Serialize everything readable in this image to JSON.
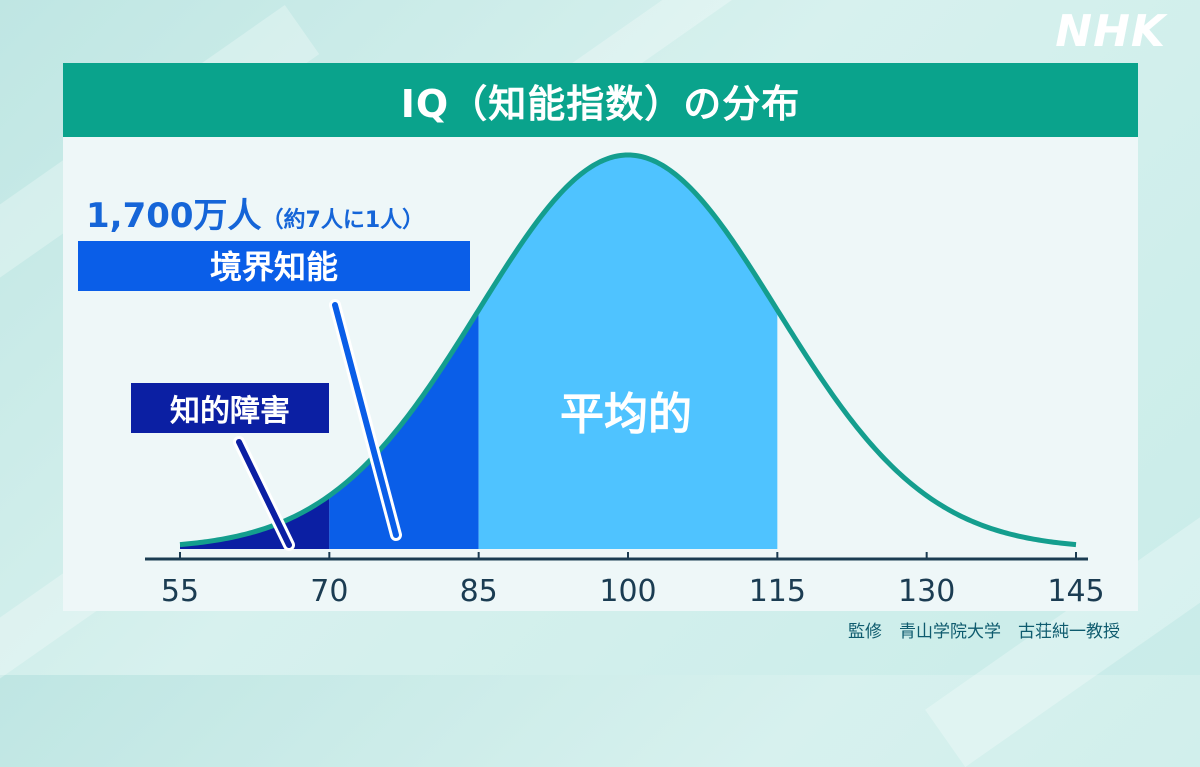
{
  "logo": "NHK",
  "title": "IQ（知能指数）の分布",
  "credit": "監修　青山学院大学　古荘純一教授",
  "chart_data": {
    "type": "area",
    "distribution": "normal",
    "mean": 100,
    "sd": 15,
    "xlim": [
      55,
      145
    ],
    "x_ticks": [
      "55",
      "70",
      "85",
      "100",
      "115",
      "130",
      "145"
    ],
    "regions": [
      {
        "label": "知的障害",
        "from": 55,
        "to": 70,
        "color": "#0b1fa3"
      },
      {
        "label": "境界知能",
        "from": 70,
        "to": 85,
        "color": "#0a5ee8"
      },
      {
        "label": "平均的",
        "from": 85,
        "to": 115,
        "color": "#4fc3ff"
      }
    ],
    "annotation": {
      "count": "1,700万人",
      "ratio": "（約7人に1人）"
    },
    "colors": {
      "curve": "#149e8e",
      "axis": "#1b3c52"
    }
  }
}
